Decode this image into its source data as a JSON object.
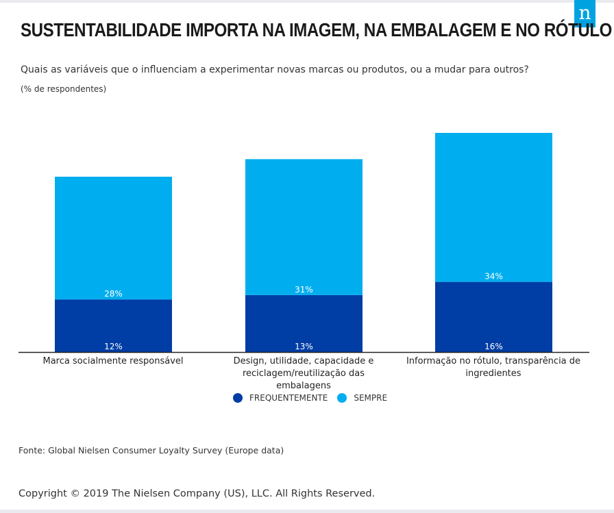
{
  "title": "SUSTENTABILIDADE IMPORTA NA IMAGEM, NA EMBALAGEM E NO RÓTULO",
  "subtitle": "Quais as variáveis que o influenciam a experimentar novas marcas ou produtos, ou a mudar para outros?",
  "unit_note": "(% de respondentes)",
  "logo_glyph": "n",
  "source": "Fonte: Global Nielsen Consumer Loyalty Survey (Europe data)",
  "copyright": "Copyright © 2019 The Nielsen Company (US), LLC. All Rights Reserved.",
  "colors": {
    "frequentemente": "#003da5",
    "sempre": "#00aeef",
    "logo": "#00a3e0"
  },
  "chart_data": {
    "type": "bar",
    "stacked": true,
    "title": "SUSTENTABILIDADE IMPORTA NA IMAGEM, NA EMBALAGEM E NO RÓTULO",
    "ylabel": "% de respondentes",
    "ylim": [
      0,
      50
    ],
    "categories": [
      "Marca socialmente responsável",
      "Design, utilidade, capacidade e reciclagem/reutilização das embalagens",
      "Informação no rótulo, transparência de ingredientes"
    ],
    "series": [
      {
        "name": "FREQUENTEMENTE",
        "values": [
          12,
          13,
          16
        ],
        "labels": [
          "12%",
          "13%",
          "16%"
        ]
      },
      {
        "name": "SEMPRE",
        "values": [
          28,
          31,
          34
        ],
        "labels": [
          "28%",
          "31%",
          "34%"
        ]
      }
    ],
    "legend": "bottom-center"
  }
}
